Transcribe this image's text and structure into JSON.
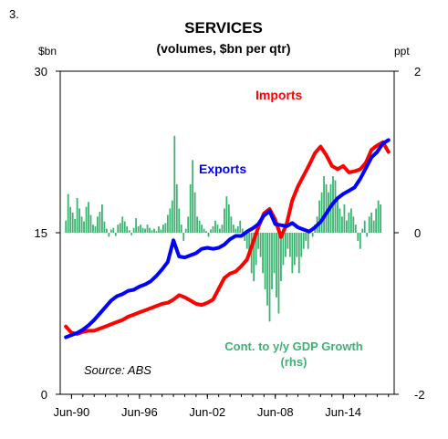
{
  "figure_number": "3.",
  "chart_data": {
    "type": "line",
    "title": "SERVICES",
    "subtitle": "(volumes, $bn per qtr)",
    "left_axis": {
      "unit": "$bn",
      "min": 0,
      "max": 30,
      "ticks": [
        0,
        15,
        30
      ]
    },
    "right_axis": {
      "unit": "ppt",
      "min": -2,
      "max": 2,
      "ticks": [
        -2,
        0,
        2
      ]
    },
    "x_axis": {
      "ticks": [
        "Jun-90",
        "Jun-96",
        "Jun-02",
        "Jun-08",
        "Jun-14"
      ],
      "tick_years": [
        1990.5,
        1996.5,
        2002.5,
        2008.5,
        2014.5
      ],
      "range": [
        1989.5,
        2019.0
      ]
    },
    "grid": false,
    "source": "Source: ABS",
    "series": [
      {
        "name": "Imports",
        "axis": "left",
        "color": "#ff0000",
        "points": [
          [
            1990.0,
            6.3
          ],
          [
            1990.5,
            5.7
          ],
          [
            1991.0,
            5.6
          ],
          [
            1991.5,
            5.8
          ],
          [
            1992.0,
            5.9
          ],
          [
            1992.5,
            5.9
          ],
          [
            1993.0,
            6.1
          ],
          [
            1993.5,
            6.3
          ],
          [
            1994.0,
            6.5
          ],
          [
            1994.5,
            6.7
          ],
          [
            1995.0,
            6.9
          ],
          [
            1995.5,
            7.2
          ],
          [
            1996.0,
            7.4
          ],
          [
            1996.5,
            7.6
          ],
          [
            1997.0,
            7.8
          ],
          [
            1997.5,
            8.0
          ],
          [
            1998.0,
            8.2
          ],
          [
            1998.5,
            8.4
          ],
          [
            1999.0,
            8.5
          ],
          [
            1999.5,
            8.8
          ],
          [
            2000.0,
            9.2
          ],
          [
            2000.5,
            9.0
          ],
          [
            2001.0,
            8.7
          ],
          [
            2001.5,
            8.4
          ],
          [
            2002.0,
            8.3
          ],
          [
            2002.5,
            8.5
          ],
          [
            2003.0,
            8.8
          ],
          [
            2003.5,
            9.8
          ],
          [
            2004.0,
            10.8
          ],
          [
            2004.5,
            11.2
          ],
          [
            2005.0,
            11.4
          ],
          [
            2005.5,
            11.9
          ],
          [
            2006.0,
            12.5
          ],
          [
            2006.5,
            14.0
          ],
          [
            2007.0,
            15.5
          ],
          [
            2007.5,
            16.8
          ],
          [
            2008.0,
            17.2
          ],
          [
            2008.5,
            16.2
          ],
          [
            2009.0,
            14.6
          ],
          [
            2009.5,
            15.8
          ],
          [
            2010.0,
            18.0
          ],
          [
            2010.5,
            19.3
          ],
          [
            2011.0,
            20.3
          ],
          [
            2011.5,
            21.3
          ],
          [
            2012.0,
            22.4
          ],
          [
            2012.5,
            23.0
          ],
          [
            2013.0,
            22.2
          ],
          [
            2013.5,
            21.2
          ],
          [
            2014.0,
            20.9
          ],
          [
            2014.5,
            21.2
          ],
          [
            2015.0,
            20.6
          ],
          [
            2015.5,
            20.7
          ],
          [
            2016.0,
            20.9
          ],
          [
            2016.5,
            21.5
          ],
          [
            2017.0,
            22.7
          ],
          [
            2017.5,
            23.1
          ],
          [
            2018.0,
            23.4
          ],
          [
            2018.5,
            22.5
          ]
        ]
      },
      {
        "name": "Exports",
        "axis": "left",
        "color": "#0000ff",
        "points": [
          [
            1990.0,
            5.3
          ],
          [
            1990.5,
            5.5
          ],
          [
            1991.0,
            5.7
          ],
          [
            1991.5,
            6.0
          ],
          [
            1992.0,
            6.4
          ],
          [
            1992.5,
            6.9
          ],
          [
            1993.0,
            7.5
          ],
          [
            1993.5,
            8.1
          ],
          [
            1994.0,
            8.7
          ],
          [
            1994.5,
            9.1
          ],
          [
            1995.0,
            9.3
          ],
          [
            1995.5,
            9.6
          ],
          [
            1996.0,
            9.7
          ],
          [
            1996.5,
            10.0
          ],
          [
            1997.0,
            10.2
          ],
          [
            1997.5,
            10.5
          ],
          [
            1998.0,
            11.0
          ],
          [
            1998.5,
            11.6
          ],
          [
            1999.0,
            12.3
          ],
          [
            1999.5,
            14.3
          ],
          [
            2000.0,
            12.8
          ],
          [
            2000.5,
            12.7
          ],
          [
            2001.0,
            12.9
          ],
          [
            2001.5,
            13.1
          ],
          [
            2002.0,
            13.5
          ],
          [
            2002.5,
            13.6
          ],
          [
            2003.0,
            13.5
          ],
          [
            2003.5,
            13.6
          ],
          [
            2004.0,
            13.9
          ],
          [
            2004.5,
            14.4
          ],
          [
            2005.0,
            14.7
          ],
          [
            2005.5,
            14.7
          ],
          [
            2006.0,
            15.1
          ],
          [
            2006.5,
            15.4
          ],
          [
            2007.0,
            15.8
          ],
          [
            2007.5,
            16.6
          ],
          [
            2008.0,
            17.0
          ],
          [
            2008.5,
            15.8
          ],
          [
            2009.0,
            15.7
          ],
          [
            2009.5,
            15.6
          ],
          [
            2010.0,
            15.9
          ],
          [
            2010.5,
            15.5
          ],
          [
            2011.0,
            15.3
          ],
          [
            2011.5,
            15.1
          ],
          [
            2012.0,
            15.5
          ],
          [
            2012.5,
            16.0
          ],
          [
            2013.0,
            16.8
          ],
          [
            2013.5,
            17.6
          ],
          [
            2014.0,
            18.2
          ],
          [
            2014.5,
            18.6
          ],
          [
            2015.0,
            18.9
          ],
          [
            2015.5,
            19.2
          ],
          [
            2016.0,
            20.0
          ],
          [
            2016.5,
            21.0
          ],
          [
            2017.0,
            22.0
          ],
          [
            2017.5,
            22.5
          ],
          [
            2018.0,
            23.3
          ],
          [
            2018.5,
            23.6
          ]
        ]
      },
      {
        "name": "Cont. to y/y GDP Growth",
        "name_line2": "(rhs)",
        "axis": "right",
        "type": "bar",
        "color": "#3cb371",
        "values": [
          0.15,
          0.48,
          0.32,
          0.25,
          0.17,
          0.43,
          0.3,
          0.2,
          0.14,
          0.32,
          0.38,
          0.22,
          0.1,
          0.08,
          0.2,
          0.26,
          0.35,
          0.14,
          0.05,
          -0.05,
          0.04,
          0.06,
          -0.04,
          0.1,
          0.12,
          0.2,
          0.14,
          0.08,
          0.03,
          -0.03,
          0.06,
          0.18,
          0.08,
          0.1,
          0.06,
          0.05,
          0.1,
          0.06,
          0.03,
          0.05,
          0.02,
          0.08,
          0.04,
          0.1,
          0.12,
          0.22,
          0.3,
          0.4,
          1.2,
          0.6,
          0.3,
          0.1,
          -0.1,
          0.05,
          0.2,
          0.6,
          0.9,
          0.5,
          0.2,
          0.15,
          0.1,
          0.05,
          0.02,
          -0.05,
          0.04,
          0.08,
          0.15,
          0.1,
          0.05,
          0.1,
          0.3,
          0.45,
          0.35,
          0.2,
          0.1,
          0.05,
          0.08,
          0.15,
          0.05,
          -0.1,
          -0.2,
          -0.3,
          -0.5,
          -0.6,
          -0.4,
          -0.2,
          -0.3,
          -0.5,
          -0.7,
          -0.9,
          -1.1,
          -0.7,
          -0.5,
          -0.8,
          -1.0,
          -0.6,
          -0.4,
          -0.3,
          -0.2,
          -0.3,
          -0.5,
          -0.4,
          -0.3,
          -0.5,
          -0.3,
          -0.2,
          -0.1,
          -0.2,
          0.05,
          -0.05,
          0.1,
          0.2,
          0.4,
          0.5,
          0.7,
          0.6,
          0.5,
          0.6,
          0.7,
          0.65,
          0.4,
          0.3,
          0.2,
          0.35,
          0.15,
          0.25,
          0.3,
          0.2,
          0.1,
          -0.1,
          -0.2,
          0.05,
          0.15,
          -0.05,
          0.2,
          0.25,
          0.15,
          0.3,
          0.4,
          0.35
        ]
      }
    ],
    "annotations": [
      "Imports",
      "Exports",
      "Cont. to y/y GDP Growth",
      "(rhs)"
    ]
  }
}
